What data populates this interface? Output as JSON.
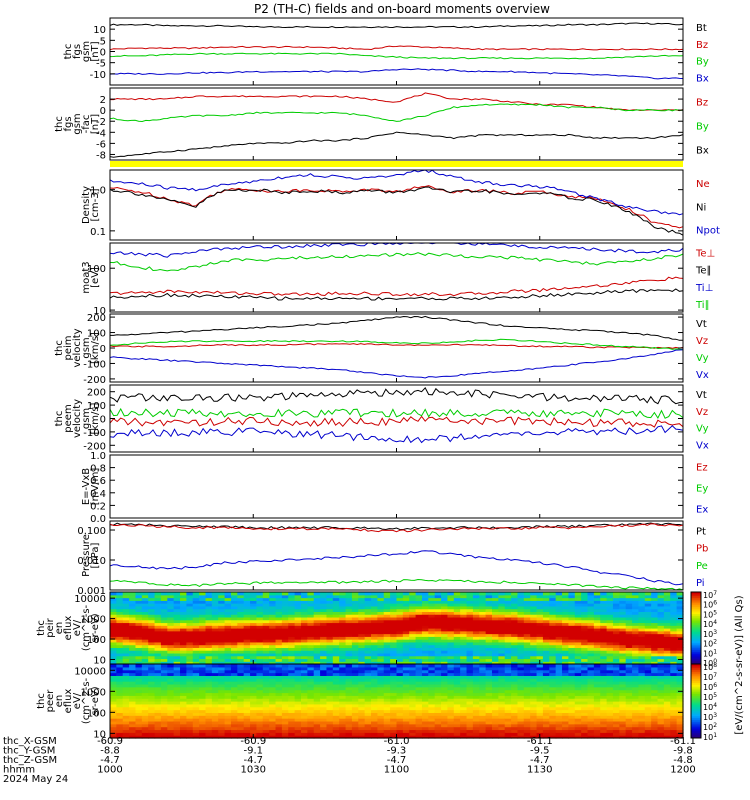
{
  "title": "P2 (TH-C) fields and on-board moments overview",
  "chart_data": [
    {
      "type": "line",
      "panel": "fgs",
      "ylabel": [
        "thc",
        "fgs",
        "gsm",
        "[nT]"
      ],
      "ylim": [
        -15,
        15
      ],
      "yticks": [
        10,
        5,
        0,
        -5,
        -10
      ],
      "yscale": "linear",
      "series": [
        {
          "name": "Bt",
          "color": "#000000",
          "values": [
            12,
            12,
            11.5,
            11.5,
            11.5,
            11,
            11,
            11,
            11,
            11,
            11,
            11,
            11,
            11,
            11.5,
            11.5,
            12,
            12,
            12.5,
            12.5,
            12
          ]
        },
        {
          "name": "Bz",
          "color": "#cc0000",
          "values": [
            1,
            1.5,
            1.5,
            1.5,
            2,
            2,
            2,
            2,
            1.5,
            1,
            2.5,
            2,
            1.5,
            1,
            1,
            1,
            1,
            1,
            1,
            1,
            1
          ]
        },
        {
          "name": "By",
          "color": "#00cc00",
          "values": [
            -2,
            -2,
            -1.5,
            -1,
            -1,
            -1,
            -1,
            -1,
            -1,
            -2,
            -2.5,
            -3,
            -3,
            -3,
            -3,
            -3,
            -3,
            -3,
            -2.5,
            -2,
            -2
          ]
        },
        {
          "name": "Bx",
          "color": "#0000cc",
          "values": [
            -10,
            -10,
            -10,
            -9.5,
            -9.5,
            -9,
            -9,
            -9,
            -9,
            -9,
            -8,
            -8,
            -8.5,
            -9,
            -9,
            -9.5,
            -10,
            -10.5,
            -11,
            -12,
            -12
          ]
        }
      ]
    },
    {
      "type": "line",
      "panel": "fgs-fac",
      "ylabel": [
        "thc",
        "fgs",
        "gsm",
        "-fac",
        "[nT]"
      ],
      "ylim": [
        -9,
        4
      ],
      "yticks": [
        2,
        0,
        -2,
        -4,
        -6,
        -8
      ],
      "yscale": "linear",
      "series": [
        {
          "name": "Bz",
          "color": "#cc0000",
          "values": [
            2,
            2,
            2,
            2.5,
            2.5,
            2.5,
            2.5,
            2.5,
            2.5,
            2,
            1.5,
            3,
            2,
            2,
            1.5,
            1,
            1,
            0.5,
            0,
            0,
            0
          ]
        },
        {
          "name": "By",
          "color": "#00cc00",
          "values": [
            -1.5,
            -2,
            -1.5,
            -1,
            -1,
            -0.5,
            -0.5,
            -0.5,
            -0.5,
            -1,
            -2,
            -1,
            0.5,
            1,
            1,
            1,
            0.5,
            0.5,
            0,
            0,
            0
          ]
        },
        {
          "name": "Bx",
          "color": "#000000",
          "values": [
            -8.5,
            -8,
            -7.5,
            -7,
            -6.5,
            -6,
            -6,
            -5.5,
            -5.5,
            -5,
            -4,
            -4.5,
            -5,
            -4.5,
            -4.5,
            -4.5,
            -4.5,
            -5,
            -5,
            -5,
            -4.5
          ]
        }
      ]
    },
    {
      "type": "line",
      "panel": "density",
      "ylabel": [
        "Density",
        "[cm-3]"
      ],
      "ylim": [
        0.06,
        3
      ],
      "yticks": [
        1.0,
        0.1
      ],
      "ytick_labels": [
        "1.0",
        "0.1"
      ],
      "yscale": "log",
      "series": [
        {
          "name": "Ne",
          "color": "#cc0000",
          "values": [
            1.1,
            0.9,
            0.6,
            0.4,
            1.0,
            1.0,
            0.9,
            1.0,
            0.9,
            1.0,
            0.9,
            1.2,
            0.9,
            1.0,
            0.8,
            0.9,
            0.7,
            0.6,
            0.35,
            0.15,
            0.12
          ]
        },
        {
          "name": "Ni",
          "color": "#000000",
          "values": [
            1.0,
            0.8,
            0.55,
            0.38,
            0.95,
            1.0,
            0.85,
            0.95,
            0.85,
            0.95,
            0.85,
            1.1,
            0.85,
            0.95,
            0.75,
            0.85,
            0.65,
            0.55,
            0.3,
            0.12,
            0.08
          ]
        },
        {
          "name": "Npot",
          "color": "#0000cc",
          "values": [
            1.6,
            1.4,
            1.1,
            1.0,
            1.3,
            1.6,
            2.0,
            2.3,
            2.0,
            1.9,
            2.2,
            3.0,
            2.0,
            1.5,
            1.3,
            1.2,
            0.9,
            0.6,
            0.4,
            0.3,
            0.25
          ]
        }
      ]
    },
    {
      "type": "line",
      "panel": "temperature",
      "ylabel": [
        "moat3",
        "[eV]"
      ],
      "ylim": [
        9,
        400
      ],
      "yticks": [
        100,
        10
      ],
      "yscale": "log",
      "series": [
        {
          "name": "Te⊥",
          "color": "#cc0000",
          "values": [
            25,
            26,
            28,
            27,
            26,
            25,
            24,
            24,
            25,
            25,
            24,
            24,
            24,
            25,
            28,
            30,
            34,
            38,
            44,
            52,
            60
          ]
        },
        {
          "name": "Te∥",
          "color": "#000000",
          "values": [
            20,
            22,
            23,
            22,
            21,
            20,
            19,
            19,
            19,
            19,
            19,
            19,
            19,
            19,
            20,
            22,
            24,
            26,
            28,
            30,
            30
          ]
        },
        {
          "name": "Ti⊥",
          "color": "#0000cc",
          "values": [
            230,
            220,
            200,
            250,
            300,
            320,
            330,
            350,
            360,
            380,
            400,
            420,
            400,
            380,
            350,
            320,
            300,
            280,
            260,
            250,
            280
          ]
        },
        {
          "name": "Ti∥",
          "color": "#00cc00",
          "values": [
            140,
            110,
            80,
            110,
            150,
            160,
            170,
            180,
            190,
            200,
            210,
            220,
            200,
            190,
            180,
            160,
            140,
            130,
            140,
            170,
            210
          ]
        }
      ]
    },
    {
      "type": "line",
      "panel": "peim-velocity",
      "ylabel": [
        "thc",
        "peim",
        "velocity",
        "gsm",
        "[km/s]"
      ],
      "ylim": [
        -220,
        220
      ],
      "yticks": [
        200,
        100,
        0,
        -100,
        -200
      ],
      "yscale": "linear",
      "series": [
        {
          "name": "Vt",
          "color": "#000000",
          "values": [
            80,
            90,
            100,
            110,
            120,
            130,
            140,
            150,
            160,
            180,
            200,
            200,
            180,
            160,
            140,
            130,
            120,
            110,
            100,
            80,
            50
          ]
        },
        {
          "name": "Vz",
          "color": "#cc0000",
          "values": [
            10,
            10,
            10,
            15,
            20,
            20,
            20,
            25,
            25,
            25,
            20,
            20,
            20,
            20,
            15,
            10,
            10,
            5,
            5,
            0,
            0
          ]
        },
        {
          "name": "Vy",
          "color": "#00cc00",
          "values": [
            20,
            30,
            40,
            45,
            45,
            45,
            45,
            45,
            45,
            40,
            35,
            30,
            40,
            50,
            55,
            40,
            30,
            20,
            10,
            0,
            -10
          ]
        },
        {
          "name": "Vx",
          "color": "#0000cc",
          "values": [
            -60,
            -70,
            -80,
            -90,
            -100,
            -110,
            -120,
            -130,
            -140,
            -160,
            -180,
            -190,
            -180,
            -160,
            -150,
            -130,
            -110,
            -90,
            -70,
            -40,
            -10
          ]
        }
      ]
    },
    {
      "type": "line",
      "panel": "peem-velocity",
      "ylabel": [
        "thc",
        "peem",
        "velocity",
        "gsm",
        "[km/s]"
      ],
      "ylim": [
        -250,
        250
      ],
      "yticks": [
        200,
        100,
        0,
        -100,
        -200
      ],
      "yscale": "linear",
      "series": [
        {
          "name": "Vt",
          "color": "#000000",
          "values": [
            150,
            160,
            150,
            150,
            160,
            150,
            160,
            170,
            180,
            190,
            200,
            200,
            190,
            180,
            170,
            160,
            150,
            150,
            150,
            140,
            140
          ]
        },
        {
          "name": "Vz",
          "color": "#cc0000",
          "values": [
            -20,
            -30,
            -30,
            -30,
            -20,
            -20,
            -30,
            -30,
            -30,
            -20,
            -20,
            -10,
            -10,
            -20,
            -20,
            -20,
            -30,
            -30,
            -30,
            -40,
            -40
          ]
        },
        {
          "name": "Vy",
          "color": "#00cc00",
          "values": [
            50,
            40,
            40,
            40,
            40,
            40,
            40,
            40,
            40,
            40,
            40,
            40,
            40,
            40,
            40,
            40,
            40,
            40,
            40,
            30,
            30
          ]
        },
        {
          "name": "Vx",
          "color": "#0000cc",
          "values": [
            -120,
            -110,
            -110,
            -100,
            -100,
            -100,
            -110,
            -120,
            -130,
            -140,
            -150,
            -160,
            -140,
            -130,
            -120,
            -110,
            -100,
            -100,
            -90,
            -80,
            -70
          ]
        }
      ]
    },
    {
      "type": "line",
      "panel": "efield",
      "ylabel": [
        "E=-VxB",
        "[mV/m]"
      ],
      "ylim": [
        0,
        1
      ],
      "yticks": [
        1.0,
        0.8,
        0.6,
        0.4,
        0.2,
        0.0
      ],
      "ytick_labels": [
        "1.0",
        "0.8",
        "0.6",
        "0.4",
        "0.2",
        "0.0"
      ],
      "yscale": "linear",
      "series": [
        {
          "name": "Ez",
          "color": "#cc0000",
          "values": []
        },
        {
          "name": "Ey",
          "color": "#00cc00",
          "values": []
        },
        {
          "name": "Ex",
          "color": "#0000cc",
          "values": []
        }
      ]
    },
    {
      "type": "line",
      "panel": "pressure",
      "ylabel": [
        "Pressure",
        "[nPa]"
      ],
      "ylim": [
        0.001,
        0.2
      ],
      "yticks": [
        0.1,
        0.01,
        0.001
      ],
      "ytick_labels": [
        "0.100",
        "0.010",
        "0.001"
      ],
      "yscale": "log",
      "series": [
        {
          "name": "Pt",
          "color": "#000000",
          "values": [
            0.16,
            0.15,
            0.14,
            0.13,
            0.13,
            0.12,
            0.12,
            0.12,
            0.12,
            0.12,
            0.11,
            0.12,
            0.12,
            0.12,
            0.12,
            0.13,
            0.13,
            0.14,
            0.15,
            0.16,
            0.16
          ]
        },
        {
          "name": "Pb",
          "color": "#cc0000",
          "values": [
            0.15,
            0.14,
            0.13,
            0.12,
            0.12,
            0.11,
            0.11,
            0.11,
            0.11,
            0.1,
            0.09,
            0.1,
            0.11,
            0.11,
            0.11,
            0.12,
            0.12,
            0.13,
            0.14,
            0.15,
            0.15
          ]
        },
        {
          "name": "Pe",
          "color": "#00cc00",
          "values": [
            0.002,
            0.0018,
            0.0015,
            0.0014,
            0.0016,
            0.0017,
            0.0018,
            0.0018,
            0.0018,
            0.0019,
            0.002,
            0.0022,
            0.002,
            0.0019,
            0.0018,
            0.0016,
            0.0015,
            0.0013,
            0.0012,
            0.0011,
            0.001
          ]
        },
        {
          "name": "Pi",
          "color": "#0000cc",
          "values": [
            0.007,
            0.006,
            0.005,
            0.006,
            0.008,
            0.009,
            0.01,
            0.011,
            0.012,
            0.014,
            0.016,
            0.02,
            0.015,
            0.012,
            0.01,
            0.008,
            0.006,
            0.004,
            0.003,
            0.002,
            0.0015
          ]
        }
      ]
    },
    {
      "type": "heatmap",
      "panel": "peir-spectrogram",
      "ylabel": [
        "thc",
        "peir",
        "en",
        "eflux",
        "eV/",
        "(cm^2-s-",
        "sr-eV)"
      ],
      "ylim": [
        6,
        20000
      ],
      "yticks": [
        10000,
        1000,
        100,
        10
      ],
      "yscale": "log",
      "peak_energy_eV": [
        300,
        200,
        120,
        130,
        160,
        180,
        200,
        250,
        300,
        350,
        450,
        700,
        600,
        500,
        400,
        300,
        200,
        150,
        100,
        80,
        60
      ]
    },
    {
      "type": "heatmap",
      "panel": "peer-spectrogram",
      "ylabel": [
        "thc",
        "peer",
        "en",
        "eflux",
        "eV/",
        "(cm^2-s-",
        "sr-eV)"
      ],
      "ylim": [
        6,
        20000
      ],
      "yticks": [
        10000,
        1000,
        100,
        10
      ],
      "yscale": "log"
    }
  ],
  "colorbar": {
    "label": "[eV/(cm^2-s-sr-eV)] (All Qs)",
    "ticks_upper": [
      "10^7",
      "10^6",
      "10^5",
      "10^4",
      "10^3",
      "10^2",
      "10^1",
      "10^0"
    ],
    "ticks_lower": [
      "10^8",
      "10^7",
      "10^6",
      "10^5",
      "10^4",
      "10^3",
      "10^2",
      "10^1"
    ]
  },
  "x_axis": {
    "rows": [
      {
        "label": "thc_X-GSM",
        "values": [
          "-60.9",
          "-60.9",
          "-61.0",
          "-61.1",
          "-61.1"
        ]
      },
      {
        "label": "thc_Y-GSM",
        "values": [
          "-8.8",
          "-9.1",
          "-9.3",
          "-9.5",
          "-9.8"
        ]
      },
      {
        "label": "thc_Z-GSM",
        "values": [
          "-4.7",
          "-4.7",
          "-4.7",
          "-4.7",
          "-4.8"
        ]
      },
      {
        "label": "hhmm",
        "values": [
          "1000",
          "1030",
          "1100",
          "1130",
          "1200"
        ]
      }
    ],
    "date": "2024 May 24"
  }
}
